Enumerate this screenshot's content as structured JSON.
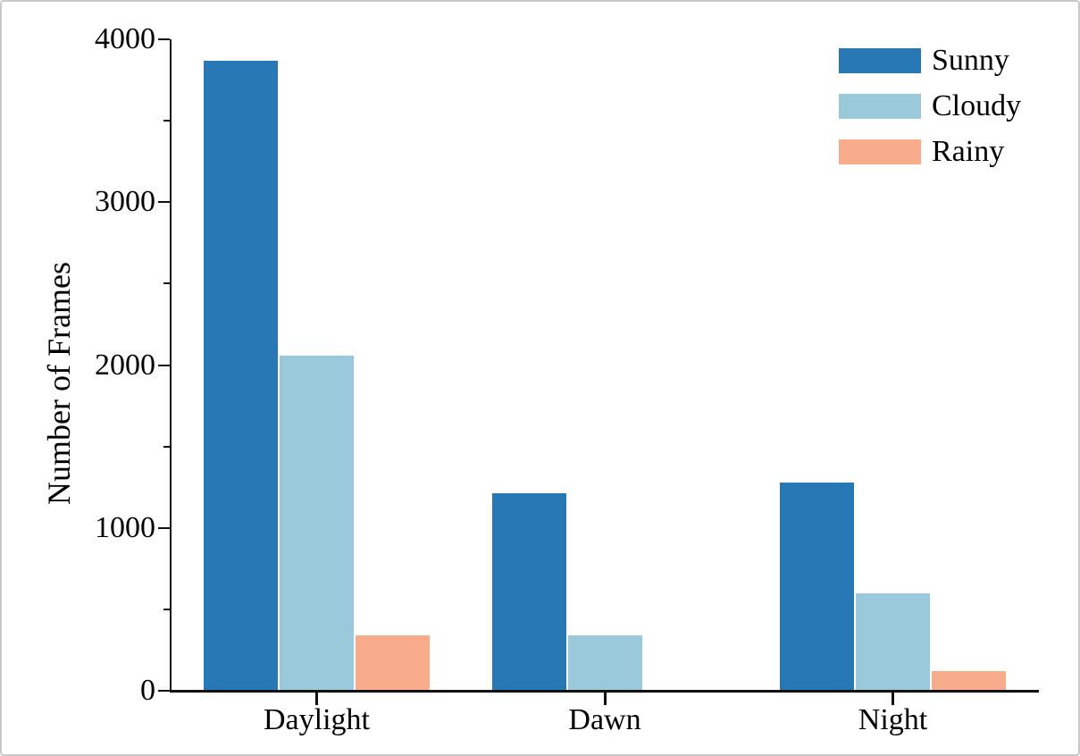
{
  "figure": {
    "background": "#ffffff",
    "border_color": "#c9c9c9",
    "axis_color": "#111111",
    "text_color": "#000000"
  },
  "chart_data": {
    "type": "bar",
    "title": "",
    "categories": [
      "Daylight",
      "Dawn",
      "Night"
    ],
    "series": [
      {
        "name": "Sunny",
        "color": "#2878B5",
        "values": [
          3870,
          1210,
          1280
        ]
      },
      {
        "name": "Cloudy",
        "color": "#9AC9DB",
        "values": [
          2060,
          340,
          600
        ]
      },
      {
        "name": "Rainy",
        "color": "#F8AC8C",
        "values": [
          340,
          0,
          120
        ]
      }
    ],
    "xlabel": "",
    "ylabel": "Number of Frames",
    "ylim": [
      0,
      4000
    ],
    "yticks": [
      0,
      1000,
      2000,
      3000,
      4000
    ],
    "y_minor_tick_interval": 500,
    "grid": false,
    "legend_position": "upper-right",
    "legend_frame": false
  }
}
